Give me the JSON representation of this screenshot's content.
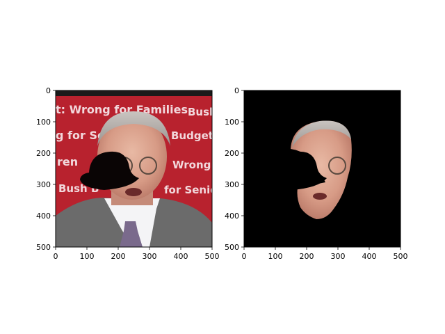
{
  "panels": [
    {
      "name": "original-photo",
      "xlim": [
        0,
        500
      ],
      "ylim": [
        500,
        0
      ],
      "xticks": [
        "0",
        "100",
        "200",
        "300",
        "400",
        "500"
      ],
      "yticks": [
        "0",
        "100",
        "200",
        "300",
        "400",
        "500"
      ],
      "background_text": [
        "t: Wrong for Families",
        "Bush",
        "g for Ser",
        "Budget:",
        "ren",
        "Wrong fo",
        "Bush B",
        "for Senior"
      ]
    },
    {
      "name": "masked-face",
      "xlim": [
        0,
        500
      ],
      "ylim": [
        500,
        0
      ],
      "xticks": [
        "0",
        "100",
        "200",
        "300",
        "400",
        "500"
      ],
      "yticks": [
        "0",
        "100",
        "200",
        "300",
        "400",
        "500"
      ]
    }
  ]
}
